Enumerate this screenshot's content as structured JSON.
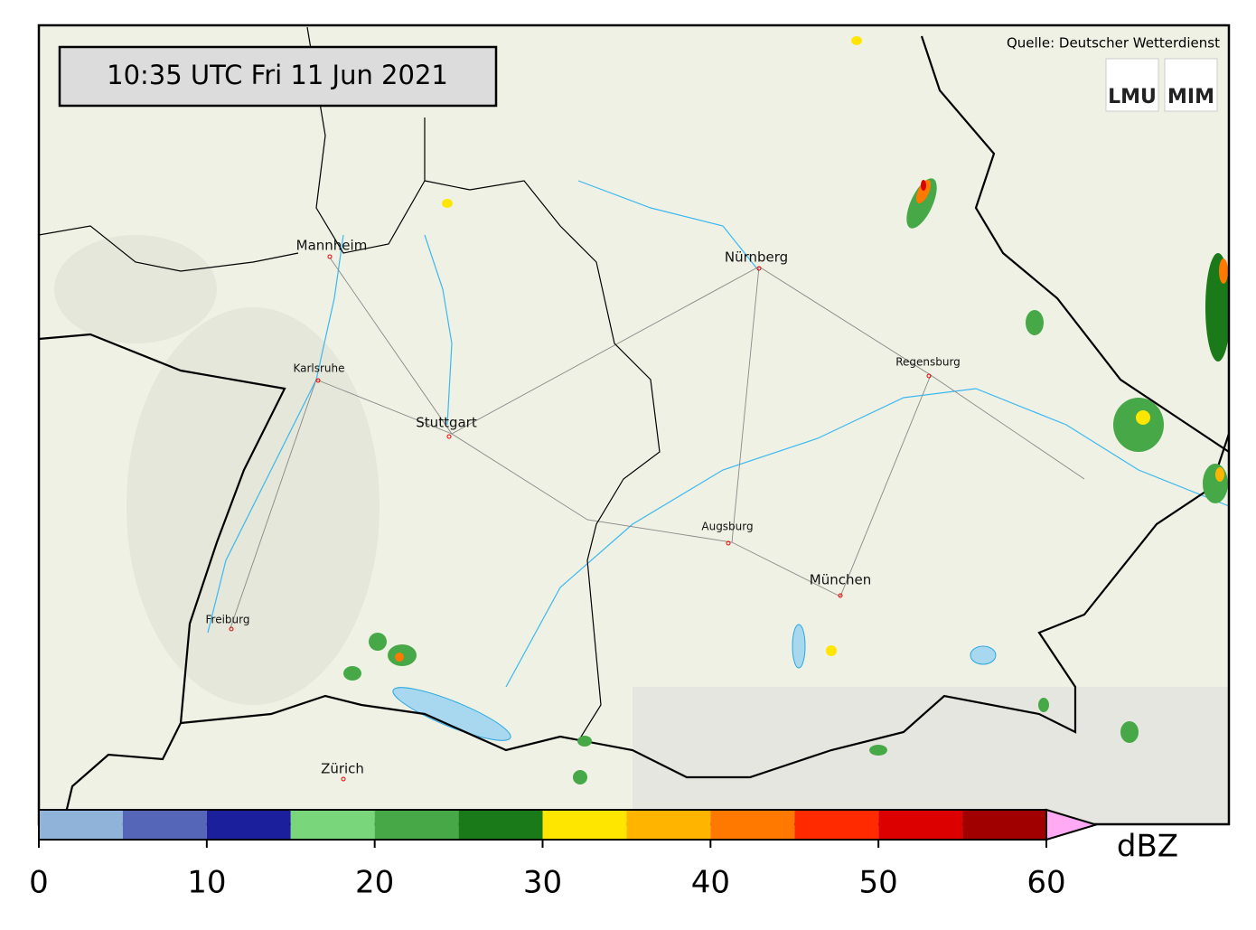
{
  "timestamp": "10:35 UTC  Fri 11 Jun 2021",
  "source": "Quelle: Deutscher Wetterdienst",
  "logos": [
    "LMU",
    "MIM"
  ],
  "cities": [
    "Mannheim",
    "Nürnberg",
    "Karlsruhe",
    "Regensburg",
    "Stuttgart",
    "Augsburg",
    "München",
    "Freiburg",
    "Zürich"
  ],
  "colorbar": {
    "label": "dBZ",
    "lim": [
      0,
      60
    ],
    "ticks": [
      0,
      10,
      20,
      30,
      40,
      50,
      60
    ],
    "levels": [
      0,
      5,
      10,
      15,
      20,
      25,
      30,
      35,
      40,
      45,
      50,
      55,
      60
    ],
    "colors": [
      "#8fb3d9",
      "#5566b8",
      "#1c1f9b",
      "#7ad67a",
      "#47a847",
      "#1a7a1a",
      "#ffe600",
      "#ffb400",
      "#ff7800",
      "#ff2a00",
      "#dc0000",
      "#a00000"
    ],
    "over_color": "#ffaaf2"
  }
}
